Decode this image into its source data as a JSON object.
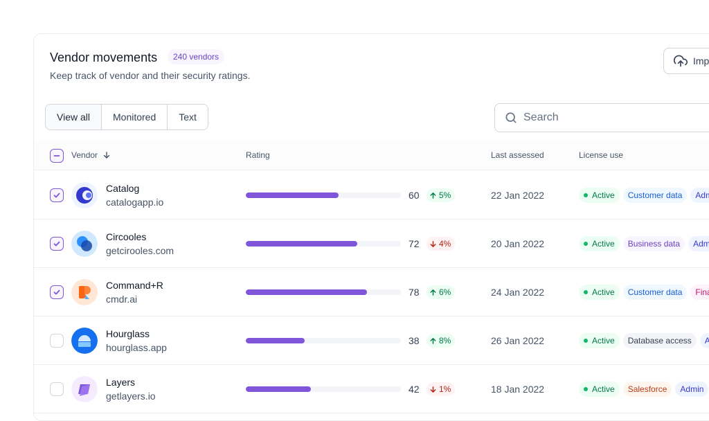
{
  "header": {
    "title": "Vendor movements",
    "count_badge": "240 vendors",
    "subtitle": "Keep track of vendor and their security ratings.",
    "import_label": "Import"
  },
  "filters": {
    "tabs": [
      {
        "label": "View all",
        "active": true
      },
      {
        "label": "Monitored",
        "active": false
      },
      {
        "label": "Text",
        "active": false
      }
    ]
  },
  "search": {
    "placeholder": "Search",
    "value": ""
  },
  "table": {
    "columns": {
      "vendor": "Vendor",
      "rating": "Rating",
      "last_assessed": "Last assessed",
      "license_use": "License use"
    },
    "select_all_state": "indeterminate",
    "rows": [
      {
        "name": "Catalog",
        "url": "catalogapp.io",
        "checked": true,
        "rating": 60,
        "trend": "5%",
        "trend_dir": "up",
        "date": "22 Jan 2022",
        "status": "Active",
        "tags": [
          {
            "label": "Customer data",
            "color": "blue"
          },
          {
            "label": "Admin",
            "color": "indigo"
          }
        ],
        "avatar": "catalog-logo-icon"
      },
      {
        "name": "Circooles",
        "url": "getcirooles.com",
        "checked": true,
        "rating": 72,
        "trend": "4%",
        "trend_dir": "down",
        "date": "20 Jan 2022",
        "status": "Active",
        "tags": [
          {
            "label": "Business data",
            "color": "purple"
          },
          {
            "label": "Admin",
            "color": "indigo"
          }
        ],
        "avatar": "circooles-logo-icon"
      },
      {
        "name": "Command+R",
        "url": "cmdr.ai",
        "checked": true,
        "rating": 78,
        "trend": "6%",
        "trend_dir": "up",
        "date": "24 Jan 2022",
        "status": "Active",
        "tags": [
          {
            "label": "Customer data",
            "color": "blue"
          },
          {
            "label": "Financials",
            "color": "pink"
          }
        ],
        "avatar": "commandr-logo-icon"
      },
      {
        "name": "Hourglass",
        "url": "hourglass.app",
        "checked": false,
        "rating": 38,
        "trend": "8%",
        "trend_dir": "up",
        "date": "26 Jan 2022",
        "status": "Active",
        "tags": [
          {
            "label": "Database access",
            "color": "gray"
          },
          {
            "label": "Admin",
            "color": "indigo"
          }
        ],
        "avatar": "hourglass-logo-icon"
      },
      {
        "name": "Layers",
        "url": "getlayers.io",
        "checked": false,
        "rating": 42,
        "trend": "1%",
        "trend_dir": "down",
        "date": "18 Jan 2022",
        "status": "Active",
        "tags": [
          {
            "label": "Salesforce",
            "color": "orange"
          },
          {
            "label": "Admin",
            "color": "indigo"
          }
        ],
        "avatar": "layers-logo-icon"
      }
    ]
  },
  "colors": {
    "accent": "#7f56d9",
    "bar_track": "#f2f4f7",
    "border": "#eaecf0"
  }
}
